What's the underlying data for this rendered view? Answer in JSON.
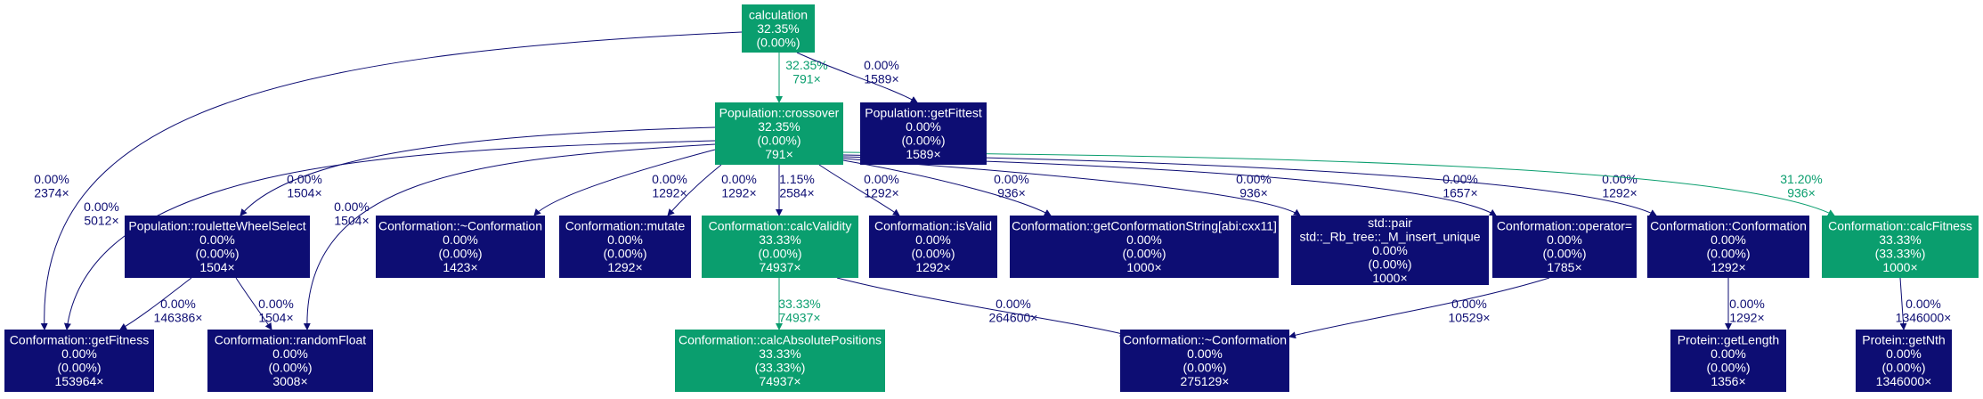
{
  "colors": {
    "hot": "#0a9e6e",
    "cold": "#0d0d73",
    "hot_text": "#0a9e6e",
    "cold_text": "#0d0d73"
  },
  "nodes": [
    {
      "id": "calculation",
      "hot": true,
      "lines": [
        "calculation",
        "32.35%",
        "(0.00%)"
      ]
    },
    {
      "id": "crossover",
      "hot": true,
      "lines": [
        "Population::crossover",
        "32.35%",
        "(0.00%)",
        "791×"
      ]
    },
    {
      "id": "getFittest",
      "hot": false,
      "lines": [
        "Population::getFittest",
        "0.00%",
        "(0.00%)",
        "1589×"
      ]
    },
    {
      "id": "roulette",
      "hot": false,
      "lines": [
        "Population::rouletteWheelSelect",
        "0.00%",
        "(0.00%)",
        "1504×"
      ]
    },
    {
      "id": "dtor1",
      "hot": false,
      "lines": [
        "Conformation::~Conformation",
        "0.00%",
        "(0.00%)",
        "1423×"
      ]
    },
    {
      "id": "mutate",
      "hot": false,
      "lines": [
        "Conformation::mutate",
        "0.00%",
        "(0.00%)",
        "1292×"
      ]
    },
    {
      "id": "calcValidity",
      "hot": true,
      "lines": [
        "Conformation::calcValidity",
        "33.33%",
        "(0.00%)",
        "74937×"
      ]
    },
    {
      "id": "isValid",
      "hot": false,
      "lines": [
        "Conformation::isValid",
        "0.00%",
        "(0.00%)",
        "1292×"
      ]
    },
    {
      "id": "getConfString",
      "hot": false,
      "lines": [
        "Conformation::getConformationString[abi:cxx11]",
        "0.00%",
        "(0.00%)",
        "1000×"
      ]
    },
    {
      "id": "stdpair",
      "hot": false,
      "lines": [
        "std::pair",
        "std::_Rb_tree::_M_insert_unique",
        "0.00%",
        "(0.00%)",
        "1000×"
      ]
    },
    {
      "id": "opAssign",
      "hot": false,
      "lines": [
        "Conformation::operator=",
        "0.00%",
        "(0.00%)",
        "1785×"
      ]
    },
    {
      "id": "ctor",
      "hot": false,
      "lines": [
        "Conformation::Conformation",
        "0.00%",
        "(0.00%)",
        "1292×"
      ]
    },
    {
      "id": "calcFitness",
      "hot": true,
      "lines": [
        "Conformation::calcFitness",
        "33.33%",
        "(33.33%)",
        "1000×"
      ]
    },
    {
      "id": "getFitness",
      "hot": false,
      "lines": [
        "Conformation::getFitness",
        "0.00%",
        "(0.00%)",
        "153964×"
      ]
    },
    {
      "id": "randomFloat",
      "hot": false,
      "lines": [
        "Conformation::randomFloat",
        "0.00%",
        "(0.00%)",
        "3008×"
      ]
    },
    {
      "id": "calcAbsPos",
      "hot": true,
      "lines": [
        "Conformation::calcAbsolutePositions",
        "33.33%",
        "(33.33%)",
        "74937×"
      ]
    },
    {
      "id": "dtor2",
      "hot": false,
      "lines": [
        "Conformation::~Conformation",
        "0.00%",
        "(0.00%)",
        "275129×"
      ]
    },
    {
      "id": "getLength",
      "hot": false,
      "lines": [
        "Protein::getLength",
        "0.00%",
        "(0.00%)",
        "1356×"
      ]
    },
    {
      "id": "getNth",
      "hot": false,
      "lines": [
        "Protein::getNth",
        "0.00%",
        "(0.00%)",
        "1346000×"
      ]
    }
  ],
  "edges": [
    {
      "id": "calculation-crossover",
      "hot": true,
      "pct": "32.35%",
      "calls": "791×"
    },
    {
      "id": "calculation-getFittest",
      "hot": false,
      "pct": "0.00%",
      "calls": "1589×"
    },
    {
      "id": "calculation-getFitness",
      "hot": false,
      "pct": "0.00%",
      "calls": "2374×"
    },
    {
      "id": "crossover-roulette",
      "hot": false,
      "pct": "0.00%",
      "calls": "1504×"
    },
    {
      "id": "crossover-getFitness",
      "hot": false,
      "pct": "0.00%",
      "calls": "5012×"
    },
    {
      "id": "crossover-randomFloat",
      "hot": false,
      "pct": "0.00%",
      "calls": "1504×"
    },
    {
      "id": "crossover-dtor1",
      "hot": false,
      "pct": "0.00%",
      "calls": "1292×"
    },
    {
      "id": "crossover-mutate",
      "hot": false,
      "pct": "0.00%",
      "calls": "1292×"
    },
    {
      "id": "crossover-calcValidity",
      "hot": false,
      "pct": "1.15%",
      "calls": "2584×"
    },
    {
      "id": "crossover-isValid",
      "hot": false,
      "pct": "0.00%",
      "calls": "1292×"
    },
    {
      "id": "crossover-getConfString",
      "hot": false,
      "pct": "0.00%",
      "calls": "936×"
    },
    {
      "id": "crossover-stdpair",
      "hot": false,
      "pct": "0.00%",
      "calls": "936×"
    },
    {
      "id": "crossover-opAssign",
      "hot": false,
      "pct": "0.00%",
      "calls": "1657×"
    },
    {
      "id": "crossover-ctor",
      "hot": false,
      "pct": "0.00%",
      "calls": "1292×"
    },
    {
      "id": "crossover-calcFitness",
      "hot": true,
      "pct": "31.20%",
      "calls": "936×"
    },
    {
      "id": "roulette-getFitness",
      "hot": false,
      "pct": "0.00%",
      "calls": "146386×"
    },
    {
      "id": "roulette-randomFloat",
      "hot": false,
      "pct": "0.00%",
      "calls": "1504×"
    },
    {
      "id": "calcValidity-calcAbsPos",
      "hot": true,
      "pct": "33.33%",
      "calls": "74937×"
    },
    {
      "id": "calcValidity-dtor2",
      "hot": false,
      "pct": "0.00%",
      "calls": "264600×"
    },
    {
      "id": "opAssign-dtor2",
      "hot": false,
      "pct": "0.00%",
      "calls": "10529×"
    },
    {
      "id": "ctor-getLength",
      "hot": false,
      "pct": "0.00%",
      "calls": "1292×"
    },
    {
      "id": "calcFitness-getNth",
      "hot": false,
      "pct": "0.00%",
      "calls": "1346000×"
    }
  ]
}
